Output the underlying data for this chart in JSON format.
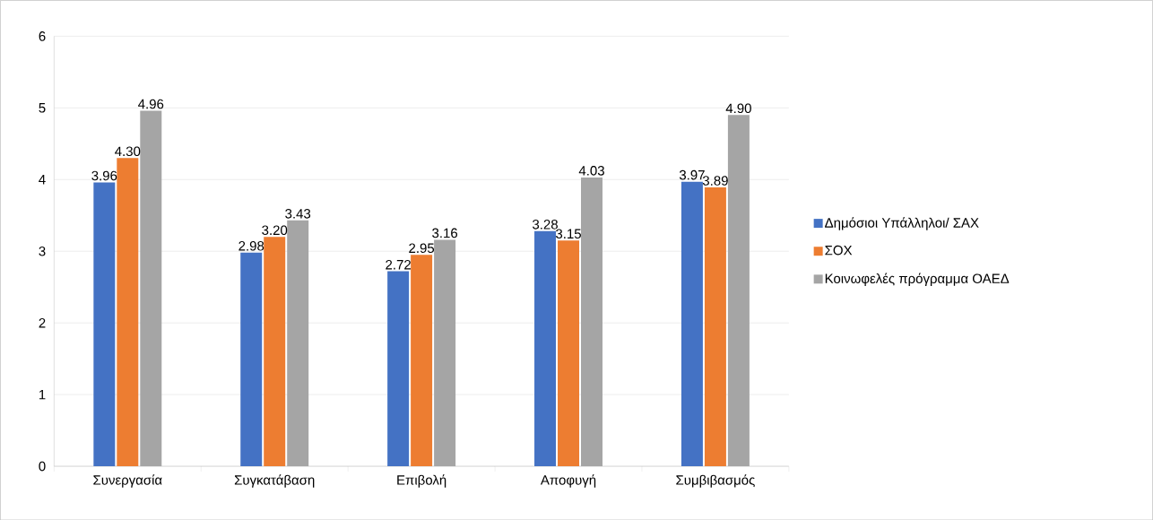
{
  "chart_data": {
    "type": "bar",
    "categories": [
      "Συνεργασία",
      "Συγκατάβαση",
      "Επιβολή",
      "Αποφυγή",
      "Συμβιβασμός"
    ],
    "series": [
      {
        "name": "Δημόσιοι Υπάλληλοι/ ΣΑΧ",
        "color": "#4472c4",
        "values": [
          3.96,
          2.98,
          2.72,
          3.28,
          3.97
        ],
        "value_labels": [
          "3.96",
          "2.98",
          "2.72",
          "3.28",
          "3.97"
        ]
      },
      {
        "name": "ΣΟΧ",
        "color": "#ed7d31",
        "values": [
          4.3,
          3.2,
          2.95,
          3.15,
          3.89
        ],
        "value_labels": [
          "4.30",
          "3.20",
          "2.95",
          "3.15",
          "3.89"
        ]
      },
      {
        "name": "Κοινωφελές πρόγραμμα ΟΑΕΔ",
        "color": "#a5a5a5",
        "values": [
          4.96,
          3.43,
          3.16,
          4.03,
          4.9
        ],
        "value_labels": [
          "4.96",
          "3.43",
          "3.16",
          "4.03",
          "4.90"
        ]
      }
    ],
    "ylim": [
      0,
      6
    ],
    "yticks": [
      0,
      1,
      2,
      3,
      4,
      5,
      6
    ],
    "grid": "y",
    "legend": "right"
  }
}
